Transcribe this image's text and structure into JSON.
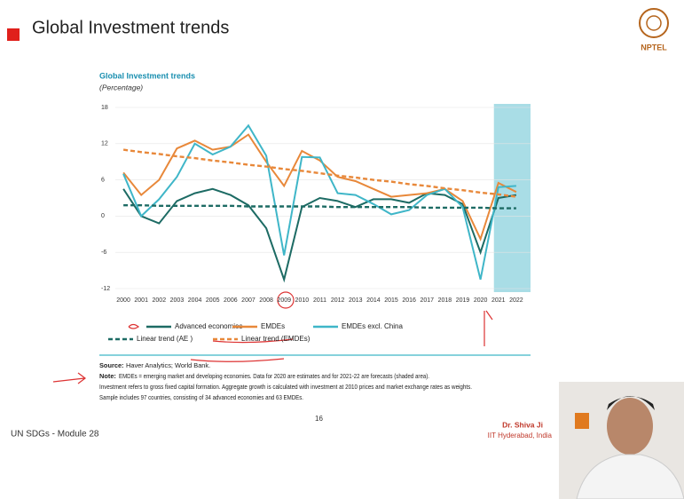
{
  "slide": {
    "title": "Global Investment trends",
    "logo": "NPTEL",
    "page_number": "16",
    "footer": "UN SDGs - Module 28",
    "author": "Dr. Shiva Ji",
    "affiliation": "IIT Hyderabad, India",
    "source_label": "Source:",
    "source": "Haver Analytics; World Bank.",
    "note_label": "Note:",
    "note": "EMDEs = emerging market and developing economies. Data for 2020 are estimates and for 2021-22 are forecasts (shaded area).",
    "note_lines": [
      "Investment refers to gross fixed capital formation. Aggregate growth is calculated with investment at 2010 prices and market exchange rates as weights.",
      "Sample includes 97 countries, consisting of 34 advanced economies and 63 EMDEs."
    ]
  },
  "chart_data": {
    "type": "line",
    "title": "Global Investment trends",
    "subtitle": "(Percentage)",
    "x": [
      2000,
      2001,
      2002,
      2003,
      2004,
      2005,
      2006,
      2007,
      2008,
      2009,
      2010,
      2011,
      2012,
      2013,
      2014,
      2015,
      2016,
      2017,
      2018,
      2019,
      2020,
      2021,
      2022
    ],
    "xlim": [
      1999.55,
      2022.8
    ],
    "xticks": [
      2000,
      2001,
      2002,
      2003,
      2004,
      2005,
      2006,
      2007,
      2008,
      2009,
      2010,
      2011,
      2012,
      2013,
      2014,
      2015,
      2016,
      2017,
      2018,
      2019,
      2020,
      2021,
      2022
    ],
    "ylim": [
      -12,
      18
    ],
    "yticks": [
      -12,
      -6,
      0,
      6,
      12,
      18
    ],
    "grid": true,
    "shade": [
      2020.75,
      2022.8
    ],
    "shade_color": "#a9dde6",
    "series": [
      {
        "name": "Advanced economies",
        "color": "#1d6b64",
        "dash": false,
        "values": [
          4.5,
          0,
          -1.2,
          2.5,
          3.8,
          4.5,
          3.5,
          1.8,
          -2,
          -10.5,
          1.5,
          3,
          2.5,
          1.5,
          2.8,
          2.8,
          2.2,
          3.8,
          3.5,
          2,
          -6,
          3,
          3.5
        ]
      },
      {
        "name": "EMDEs",
        "color": "#e8883a",
        "dash": false,
        "values": [
          7.2,
          3.5,
          6,
          11.2,
          12.5,
          11,
          11.5,
          13.5,
          9,
          5,
          10.8,
          9.2,
          6.5,
          5.8,
          4.5,
          3.2,
          3.5,
          3.8,
          4.5,
          2.5,
          -3.8,
          5.5,
          4
        ]
      },
      {
        "name": "EMDEs excl. China",
        "color": "#3fb6c8",
        "dash": false,
        "values": [
          7,
          0,
          2.8,
          6.5,
          12,
          10.2,
          11.5,
          15,
          10,
          -6.5,
          9.8,
          9.7,
          3.8,
          3.5,
          2,
          0.3,
          1,
          3.5,
          4.5,
          1.5,
          -10.5,
          4.8,
          5
        ]
      },
      {
        "name": "Linear trend (AE )",
        "color": "#1d6b64",
        "dash": true,
        "values": [
          1.8,
          1.8,
          1.7,
          1.7,
          1.7,
          1.7,
          1.7,
          1.6,
          1.6,
          1.6,
          1.6,
          1.6,
          1.5,
          1.5,
          1.5,
          1.5,
          1.5,
          1.4,
          1.4,
          1.4,
          1.4,
          1.3,
          1.3
        ]
      },
      {
        "name": "Linear trend (EMDEs)",
        "color": "#e8883a",
        "dash": true,
        "values": [
          11,
          10.6,
          10.3,
          9.9,
          9.6,
          9.2,
          8.9,
          8.5,
          8.2,
          7.8,
          7.5,
          7.1,
          6.7,
          6.4,
          6,
          5.7,
          5.3,
          5,
          4.6,
          4.3,
          3.9,
          3.6,
          3.2
        ]
      }
    ]
  }
}
